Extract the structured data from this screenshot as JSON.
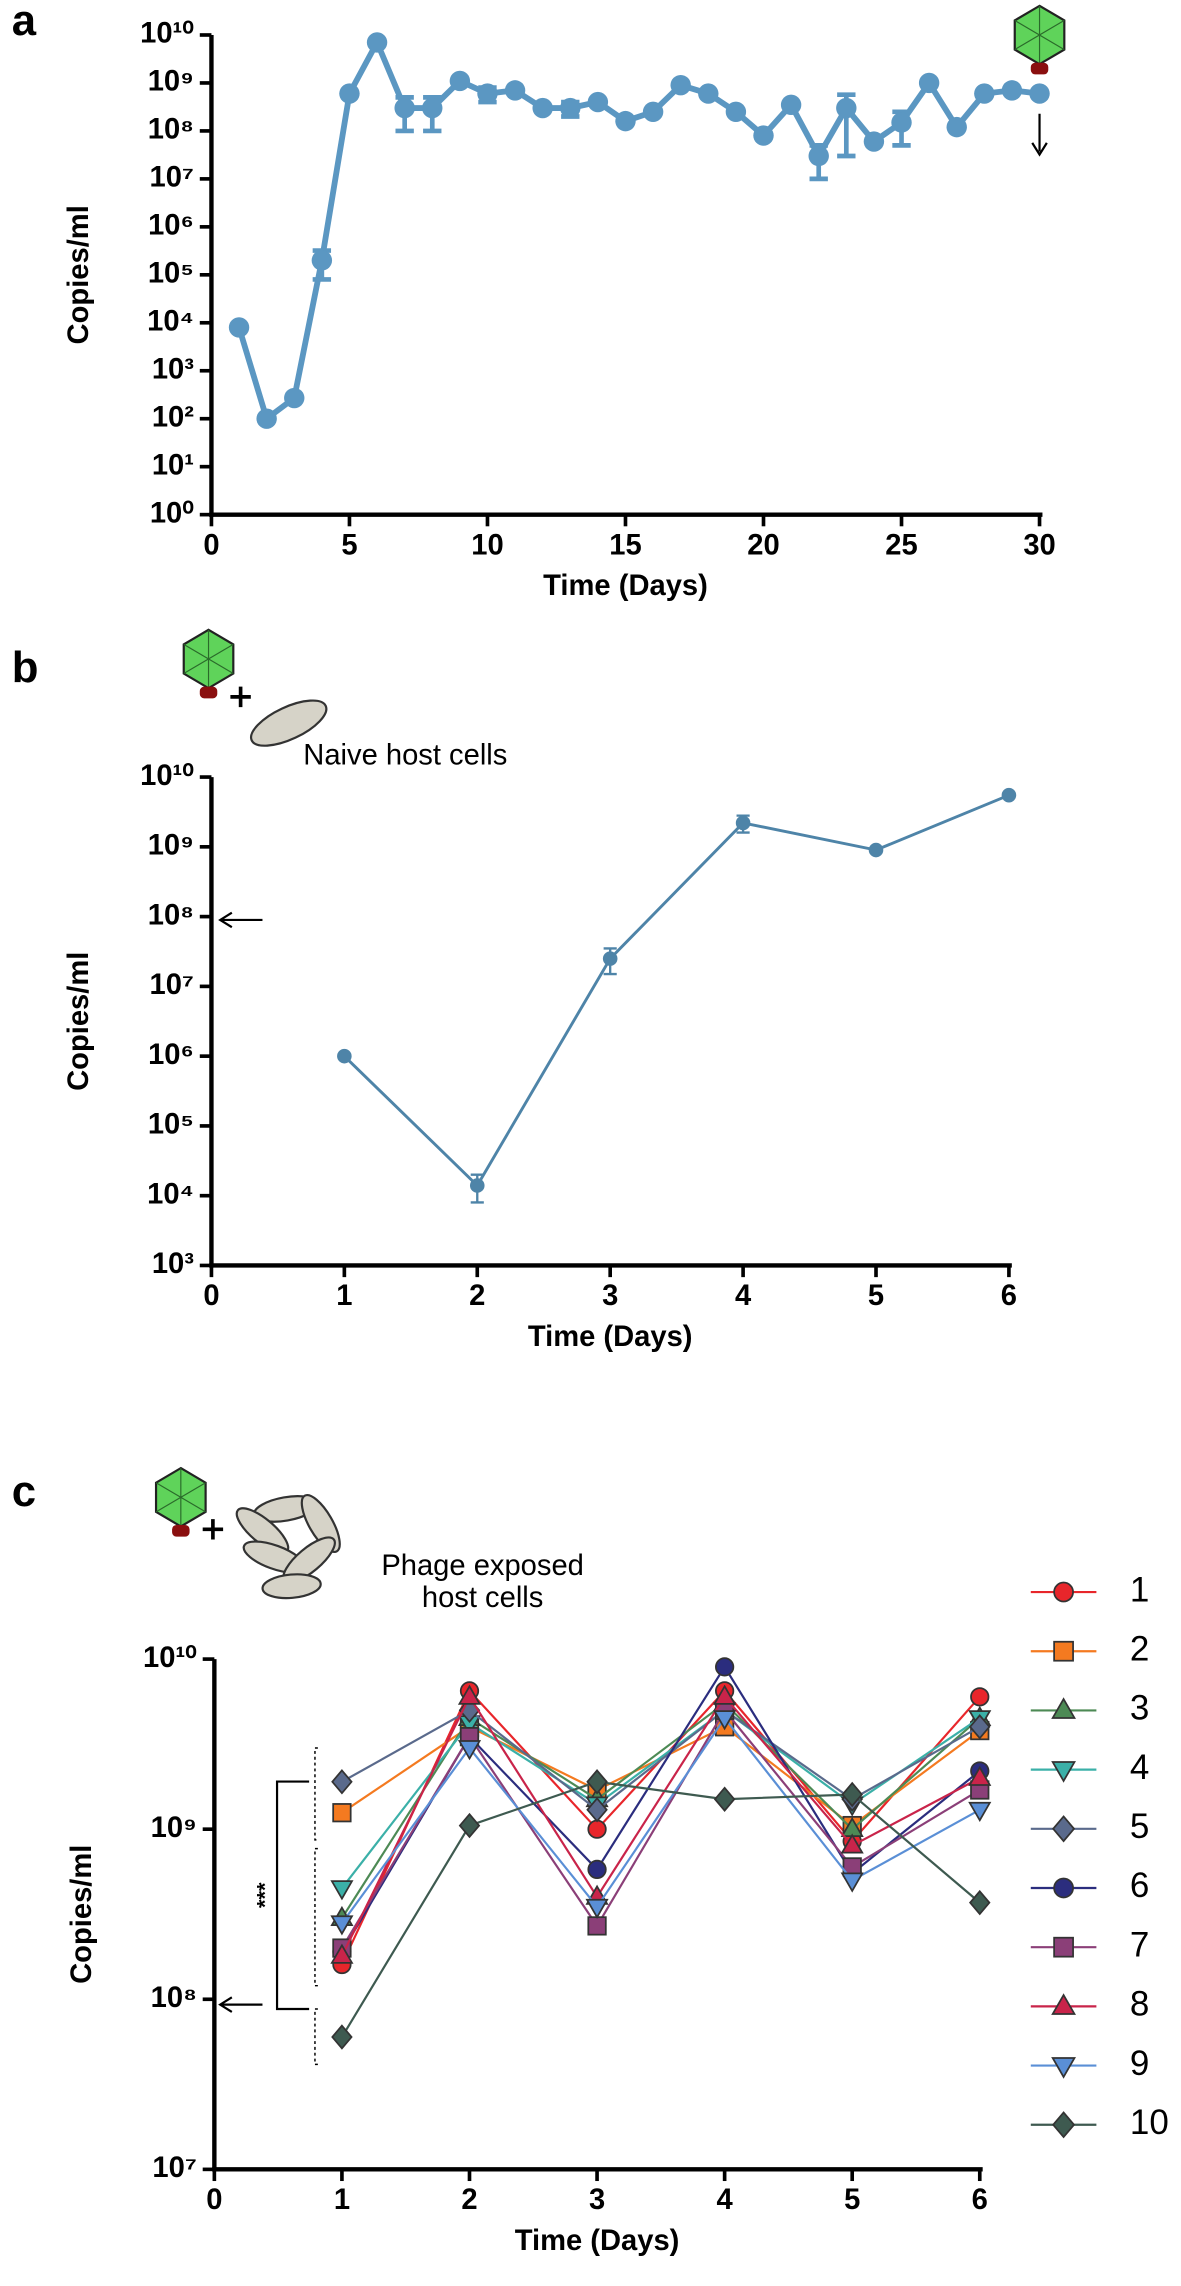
{
  "chart_data": [
    {
      "type": "line",
      "panel": "a",
      "xlabel": "Time (Days)",
      "ylabel": "Copies/ml",
      "log_y": true,
      "color": "#5b97c2",
      "x": [
        1,
        2,
        3,
        4,
        5,
        6,
        7,
        8,
        9,
        10,
        11,
        12,
        13,
        14,
        15,
        16,
        17,
        18,
        19,
        20,
        21,
        22,
        23,
        24,
        25,
        26,
        27,
        28,
        29,
        30
      ],
      "values": [
        8000,
        100,
        270,
        200000,
        600000000,
        7000000000,
        300000000,
        300000000,
        1100000000,
        600000000,
        700000000,
        300000000,
        300000000,
        400000000,
        160000000,
        250000000,
        900000000,
        600000000,
        250000000,
        80000000,
        350000000,
        30000000,
        300000000,
        60000000,
        150000000,
        1000000000,
        120000000,
        600000000,
        700000000,
        600000000
      ],
      "errors": [
        null,
        null,
        null,
        120000,
        null,
        null,
        200000000,
        200000000,
        null,
        200000000,
        null,
        null,
        100000000,
        null,
        null,
        null,
        null,
        null,
        null,
        null,
        null,
        20000000,
        270000000,
        null,
        100000000,
        null,
        null,
        null,
        null,
        null
      ],
      "xlim": [
        0,
        30
      ],
      "xticks": [
        0,
        5,
        10,
        15,
        20,
        25,
        30
      ],
      "ylim": [
        1,
        10000000000
      ],
      "yticks": [
        {
          "value": 1,
          "label": "10⁰"
        },
        {
          "value": 10,
          "label": "10¹"
        },
        {
          "value": 100,
          "label": "10²"
        },
        {
          "value": 1000,
          "label": "10³"
        },
        {
          "value": 10000,
          "label": "10⁴"
        },
        {
          "value": 100000,
          "label": "10⁵"
        },
        {
          "value": 1000000,
          "label": "10⁶"
        },
        {
          "value": 10000000,
          "label": "10⁷"
        },
        {
          "value": 100000000,
          "label": "10⁸"
        },
        {
          "value": 1000000000,
          "label": "10⁹"
        },
        {
          "value": 10000000000,
          "label": "10¹⁰"
        }
      ]
    },
    {
      "type": "line",
      "panel": "b",
      "xlabel": "Time (Days)",
      "ylabel": "Copies/ml",
      "log_y": true,
      "color": "#4e84a8",
      "annotations": [
        "Naive host cells"
      ],
      "x": [
        1,
        2,
        3,
        4,
        5,
        6
      ],
      "values": [
        1000000,
        14000,
        25000000,
        2200000000,
        900000000,
        5500000000
      ],
      "errors": [
        null,
        6000,
        10000000,
        600000000,
        null,
        null
      ],
      "xlim": [
        0,
        6
      ],
      "xticks": [
        0,
        1,
        2,
        3,
        4,
        5,
        6
      ],
      "ylim": [
        1000,
        10000000000
      ],
      "yticks": [
        {
          "value": 1000,
          "label": "10³"
        },
        {
          "value": 10000,
          "label": "10⁴"
        },
        {
          "value": 100000,
          "label": "10⁵"
        },
        {
          "value": 1000000,
          "label": "10⁶"
        },
        {
          "value": 10000000,
          "label": "10⁷"
        },
        {
          "value": 100000000,
          "label": "10⁸"
        },
        {
          "value": 1000000000,
          "label": "10⁹"
        },
        {
          "value": 10000000000,
          "label": "10¹⁰"
        }
      ]
    },
    {
      "type": "line",
      "panel": "c",
      "xlabel": "Time (Days)",
      "ylabel": "Copies/ml",
      "log_y": true,
      "annotations": [
        "Phage exposed",
        "host cells",
        "***"
      ],
      "x": [
        1,
        2,
        3,
        4,
        5,
        6
      ],
      "series": [
        {
          "name": "1",
          "color": "#e8262b",
          "marker": "circle",
          "values": [
            160000000,
            6500000000,
            1000000000,
            6500000000,
            850000000,
            6000000000
          ]
        },
        {
          "name": "2",
          "color": "#f47a20",
          "marker": "square",
          "values": [
            1250000000,
            4000000000,
            1700000000,
            4000000000,
            1050000000,
            3800000000
          ]
        },
        {
          "name": "3",
          "color": "#4d8a55",
          "marker": "triangle-up",
          "values": [
            300000000,
            4500000000,
            1500000000,
            5500000000,
            1000000000,
            4500000000
          ]
        },
        {
          "name": "4",
          "color": "#3bb0a8",
          "marker": "triangle-down",
          "values": [
            450000000,
            4200000000,
            1400000000,
            5000000000,
            1400000000,
            4500000000
          ]
        },
        {
          "name": "5",
          "color": "#5a6a8c",
          "marker": "diamond",
          "values": [
            1900000000,
            5000000000,
            1300000000,
            5000000000,
            1500000000,
            4000000000
          ]
        },
        {
          "name": "6",
          "color": "#2b2d7e",
          "marker": "circle",
          "values": [
            190000000,
            3500000000,
            580000000,
            9000000000,
            550000000,
            2200000000
          ]
        },
        {
          "name": "7",
          "color": "#8b3f78",
          "marker": "square",
          "values": [
            200000000,
            3500000000,
            270000000,
            5000000000,
            600000000,
            1700000000
          ]
        },
        {
          "name": "8",
          "color": "#c9244a",
          "marker": "triangle-up",
          "values": [
            180000000,
            6000000000,
            400000000,
            6000000000,
            800000000,
            2000000000
          ]
        },
        {
          "name": "9",
          "color": "#5a8fd6",
          "marker": "triangle-down",
          "values": [
            280000000,
            3000000000,
            350000000,
            4500000000,
            500000000,
            1300000000
          ]
        },
        {
          "name": "10",
          "color": "#3e5a50",
          "marker": "diamond",
          "values": [
            60000000,
            1050000000,
            1900000000,
            1500000000,
            1600000000,
            370000000
          ]
        }
      ],
      "xlim": [
        0,
        6
      ],
      "xticks": [
        0,
        1,
        2,
        3,
        4,
        5,
        6
      ],
      "ylim": [
        10000000,
        10000000000
      ],
      "yticks": [
        {
          "value": 10000000,
          "label": "10⁷"
        },
        {
          "value": 100000000,
          "label": "10⁸"
        },
        {
          "value": 1000000000,
          "label": "10⁹"
        },
        {
          "value": 10000000000,
          "label": "10¹⁰"
        }
      ]
    }
  ]
}
